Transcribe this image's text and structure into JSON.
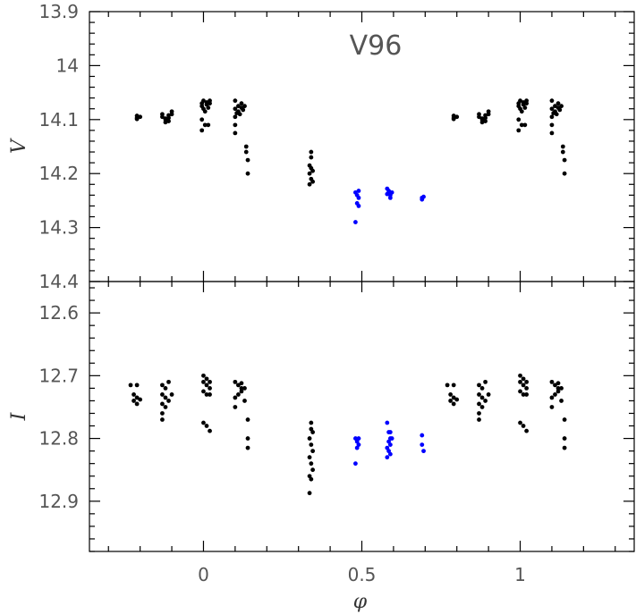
{
  "chart_data": [
    {
      "type": "scatter",
      "title": "V96",
      "xlabel": "",
      "ylabel": "V",
      "xlim": [
        -0.36,
        1.36
      ],
      "ylim": [
        14.4,
        13.9
      ],
      "y_inverted": true,
      "yticks": [
        "13.9",
        "14",
        "14.1",
        "14.2",
        "14.3",
        "14.4"
      ],
      "colors": {
        "black": "#000000",
        "blue": "#0000ff"
      },
      "series": [
        {
          "color": "black",
          "points": [
            [
              -0.21,
              14.093
            ],
            [
              -0.21,
              14.097
            ],
            [
              -0.2,
              14.095
            ],
            [
              -0.21,
              14.099
            ],
            [
              -0.13,
              14.09
            ],
            [
              -0.13,
              14.095
            ],
            [
              -0.12,
              14.1
            ],
            [
              -0.12,
              14.105
            ],
            [
              -0.11,
              14.092
            ],
            [
              -0.11,
              14.097
            ],
            [
              -0.1,
              14.09
            ],
            [
              -0.1,
              14.085
            ],
            [
              -0.12,
              14.098
            ],
            [
              -0.11,
              14.103
            ],
            [
              -0.005,
              14.07
            ],
            [
              -0.005,
              14.075
            ],
            [
              0.0,
              14.065
            ],
            [
              0.0,
              14.08
            ],
            [
              0.01,
              14.072
            ],
            [
              0.01,
              14.068
            ],
            [
              0.015,
              14.078
            ],
            [
              0.02,
              14.065
            ],
            [
              0.005,
              14.085
            ],
            [
              -0.005,
              14.1
            ],
            [
              0.005,
              14.11
            ],
            [
              0.015,
              14.11
            ],
            [
              -0.005,
              14.12
            ],
            [
              0.02,
              14.07
            ],
            [
              0.1,
              14.065
            ],
            [
              0.1,
              14.08
            ],
            [
              0.11,
              14.075
            ],
            [
              0.11,
              14.085
            ],
            [
              0.115,
              14.09
            ],
            [
              0.12,
              14.078
            ],
            [
              0.125,
              14.082
            ],
            [
              0.1,
              14.095
            ],
            [
              0.1,
              14.11
            ],
            [
              0.1,
              14.125
            ],
            [
              0.105,
              14.088
            ],
            [
              0.12,
              14.07
            ],
            [
              0.13,
              14.075
            ],
            [
              0.135,
              14.15
            ],
            [
              0.135,
              14.16
            ],
            [
              0.14,
              14.175
            ],
            [
              0.14,
              14.2
            ],
            [
              0.34,
              14.16
            ],
            [
              0.34,
              14.17
            ],
            [
              0.335,
              14.185
            ],
            [
              0.34,
              14.19
            ],
            [
              0.345,
              14.195
            ],
            [
              0.335,
              14.2
            ],
            [
              0.34,
              14.21
            ],
            [
              0.345,
              14.215
            ],
            [
              0.335,
              14.22
            ],
            [
              0.79,
              14.093
            ],
            [
              0.79,
              14.097
            ],
            [
              0.8,
              14.095
            ],
            [
              0.79,
              14.099
            ],
            [
              0.87,
              14.09
            ],
            [
              0.87,
              14.095
            ],
            [
              0.88,
              14.1
            ],
            [
              0.88,
              14.105
            ],
            [
              0.89,
              14.092
            ],
            [
              0.89,
              14.097
            ],
            [
              0.9,
              14.09
            ],
            [
              0.9,
              14.085
            ],
            [
              0.88,
              14.098
            ],
            [
              0.89,
              14.103
            ],
            [
              0.995,
              14.07
            ],
            [
              0.995,
              14.075
            ],
            [
              1.0,
              14.065
            ],
            [
              1.0,
              14.08
            ],
            [
              1.01,
              14.072
            ],
            [
              1.01,
              14.068
            ],
            [
              1.015,
              14.078
            ],
            [
              1.02,
              14.065
            ],
            [
              1.005,
              14.085
            ],
            [
              0.995,
              14.1
            ],
            [
              1.005,
              14.11
            ],
            [
              1.015,
              14.11
            ],
            [
              0.995,
              14.12
            ],
            [
              1.02,
              14.07
            ],
            [
              1.1,
              14.065
            ],
            [
              1.1,
              14.08
            ],
            [
              1.11,
              14.075
            ],
            [
              1.11,
              14.085
            ],
            [
              1.115,
              14.09
            ],
            [
              1.12,
              14.078
            ],
            [
              1.125,
              14.082
            ],
            [
              1.1,
              14.095
            ],
            [
              1.1,
              14.11
            ],
            [
              1.1,
              14.125
            ],
            [
              1.105,
              14.088
            ],
            [
              1.12,
              14.07
            ],
            [
              1.13,
              14.075
            ],
            [
              1.135,
              14.15
            ],
            [
              1.135,
              14.16
            ],
            [
              1.14,
              14.175
            ],
            [
              1.14,
              14.2
            ]
          ]
        },
        {
          "color": "blue",
          "points": [
            [
              0.48,
              14.235
            ],
            [
              0.485,
              14.24
            ],
            [
              0.49,
              14.245
            ],
            [
              0.485,
              14.255
            ],
            [
              0.49,
              14.26
            ],
            [
              0.49,
              14.232
            ],
            [
              0.48,
              14.29
            ],
            [
              0.58,
              14.228
            ],
            [
              0.585,
              14.235
            ],
            [
              0.59,
              14.24
            ],
            [
              0.585,
              14.232
            ],
            [
              0.59,
              14.245
            ],
            [
              0.595,
              14.235
            ],
            [
              0.58,
              14.238
            ],
            [
              0.69,
              14.245
            ],
            [
              0.69,
              14.248
            ],
            [
              0.695,
              14.243
            ]
          ]
        }
      ]
    },
    {
      "type": "scatter",
      "title": "",
      "xlabel": "φ",
      "ylabel": "I",
      "xlim": [
        -0.36,
        1.36
      ],
      "ylim": [
        12.98,
        12.55
      ],
      "y_inverted": true,
      "yticks": [
        "12.6",
        "12.7",
        "12.8",
        "12.9"
      ],
      "xticks": [
        "0",
        "0.5",
        "1"
      ],
      "colors": {
        "black": "#000000",
        "blue": "#0000ff"
      },
      "series": [
        {
          "color": "black",
          "points": [
            [
              -0.23,
              12.715
            ],
            [
              -0.21,
              12.715
            ],
            [
              -0.22,
              12.73
            ],
            [
              -0.21,
              12.735
            ],
            [
              -0.22,
              12.74
            ],
            [
              -0.2,
              12.738
            ],
            [
              -0.21,
              12.745
            ],
            [
              -0.13,
              12.715
            ],
            [
              -0.12,
              12.72
            ],
            [
              -0.11,
              12.71
            ],
            [
              -0.13,
              12.73
            ],
            [
              -0.12,
              12.735
            ],
            [
              -0.11,
              12.74
            ],
            [
              -0.1,
              12.73
            ],
            [
              -0.13,
              12.745
            ],
            [
              -0.12,
              12.75
            ],
            [
              -0.13,
              12.76
            ],
            [
              -0.13,
              12.77
            ],
            [
              0.0,
              12.7
            ],
            [
              0.0,
              12.71
            ],
            [
              0.01,
              12.705
            ],
            [
              0.01,
              12.715
            ],
            [
              0.02,
              12.72
            ],
            [
              0.02,
              12.71
            ],
            [
              0.0,
              12.725
            ],
            [
              0.01,
              12.73
            ],
            [
              0.02,
              12.73
            ],
            [
              0.0,
              12.775
            ],
            [
              0.01,
              12.78
            ],
            [
              0.02,
              12.788
            ],
            [
              0.1,
              12.71
            ],
            [
              0.11,
              12.715
            ],
            [
              0.12,
              12.72
            ],
            [
              0.12,
              12.725
            ],
            [
              0.11,
              12.73
            ],
            [
              0.1,
              12.735
            ],
            [
              0.12,
              12.712
            ],
            [
              0.13,
              12.72
            ],
            [
              0.1,
              12.75
            ],
            [
              0.13,
              12.74
            ],
            [
              0.14,
              12.77
            ],
            [
              0.14,
              12.8
            ],
            [
              0.14,
              12.815
            ],
            [
              0.34,
              12.775
            ],
            [
              0.34,
              12.785
            ],
            [
              0.345,
              12.79
            ],
            [
              0.335,
              12.8
            ],
            [
              0.34,
              12.81
            ],
            [
              0.345,
              12.82
            ],
            [
              0.335,
              12.83
            ],
            [
              0.34,
              12.84
            ],
            [
              0.345,
              12.85
            ],
            [
              0.335,
              12.86
            ],
            [
              0.34,
              12.865
            ],
            [
              0.335,
              12.887
            ],
            [
              0.77,
              12.715
            ],
            [
              0.79,
              12.715
            ],
            [
              0.78,
              12.73
            ],
            [
              0.79,
              12.735
            ],
            [
              0.78,
              12.74
            ],
            [
              0.8,
              12.738
            ],
            [
              0.79,
              12.745
            ],
            [
              0.87,
              12.715
            ],
            [
              0.88,
              12.72
            ],
            [
              0.89,
              12.71
            ],
            [
              0.87,
              12.73
            ],
            [
              0.88,
              12.735
            ],
            [
              0.89,
              12.74
            ],
            [
              0.9,
              12.73
            ],
            [
              0.87,
              12.745
            ],
            [
              0.88,
              12.75
            ],
            [
              0.87,
              12.76
            ],
            [
              0.87,
              12.77
            ],
            [
              1.0,
              12.7
            ],
            [
              1.0,
              12.71
            ],
            [
              1.01,
              12.705
            ],
            [
              1.01,
              12.715
            ],
            [
              1.02,
              12.72
            ],
            [
              1.02,
              12.71
            ],
            [
              1.0,
              12.725
            ],
            [
              1.01,
              12.73
            ],
            [
              1.02,
              12.73
            ],
            [
              1.0,
              12.775
            ],
            [
              1.01,
              12.78
            ],
            [
              1.02,
              12.788
            ],
            [
              1.1,
              12.71
            ],
            [
              1.11,
              12.715
            ],
            [
              1.12,
              12.72
            ],
            [
              1.12,
              12.725
            ],
            [
              1.11,
              12.73
            ],
            [
              1.1,
              12.735
            ],
            [
              1.12,
              12.712
            ],
            [
              1.13,
              12.72
            ],
            [
              1.1,
              12.75
            ],
            [
              1.13,
              12.74
            ],
            [
              1.14,
              12.77
            ],
            [
              1.14,
              12.8
            ],
            [
              1.14,
              12.815
            ]
          ]
        },
        {
          "color": "blue",
          "points": [
            [
              0.48,
              12.8
            ],
            [
              0.485,
              12.805
            ],
            [
              0.49,
              12.81
            ],
            [
              0.485,
              12.815
            ],
            [
              0.49,
              12.8
            ],
            [
              0.48,
              12.84
            ],
            [
              0.58,
              12.775
            ],
            [
              0.585,
              12.79
            ],
            [
              0.59,
              12.8
            ],
            [
              0.585,
              12.805
            ],
            [
              0.59,
              12.81
            ],
            [
              0.58,
              12.815
            ],
            [
              0.585,
              12.82
            ],
            [
              0.59,
              12.825
            ],
            [
              0.58,
              12.83
            ],
            [
              0.595,
              12.8
            ],
            [
              0.59,
              12.79
            ],
            [
              0.69,
              12.795
            ],
            [
              0.69,
              12.81
            ],
            [
              0.695,
              12.82
            ]
          ]
        }
      ]
    }
  ]
}
